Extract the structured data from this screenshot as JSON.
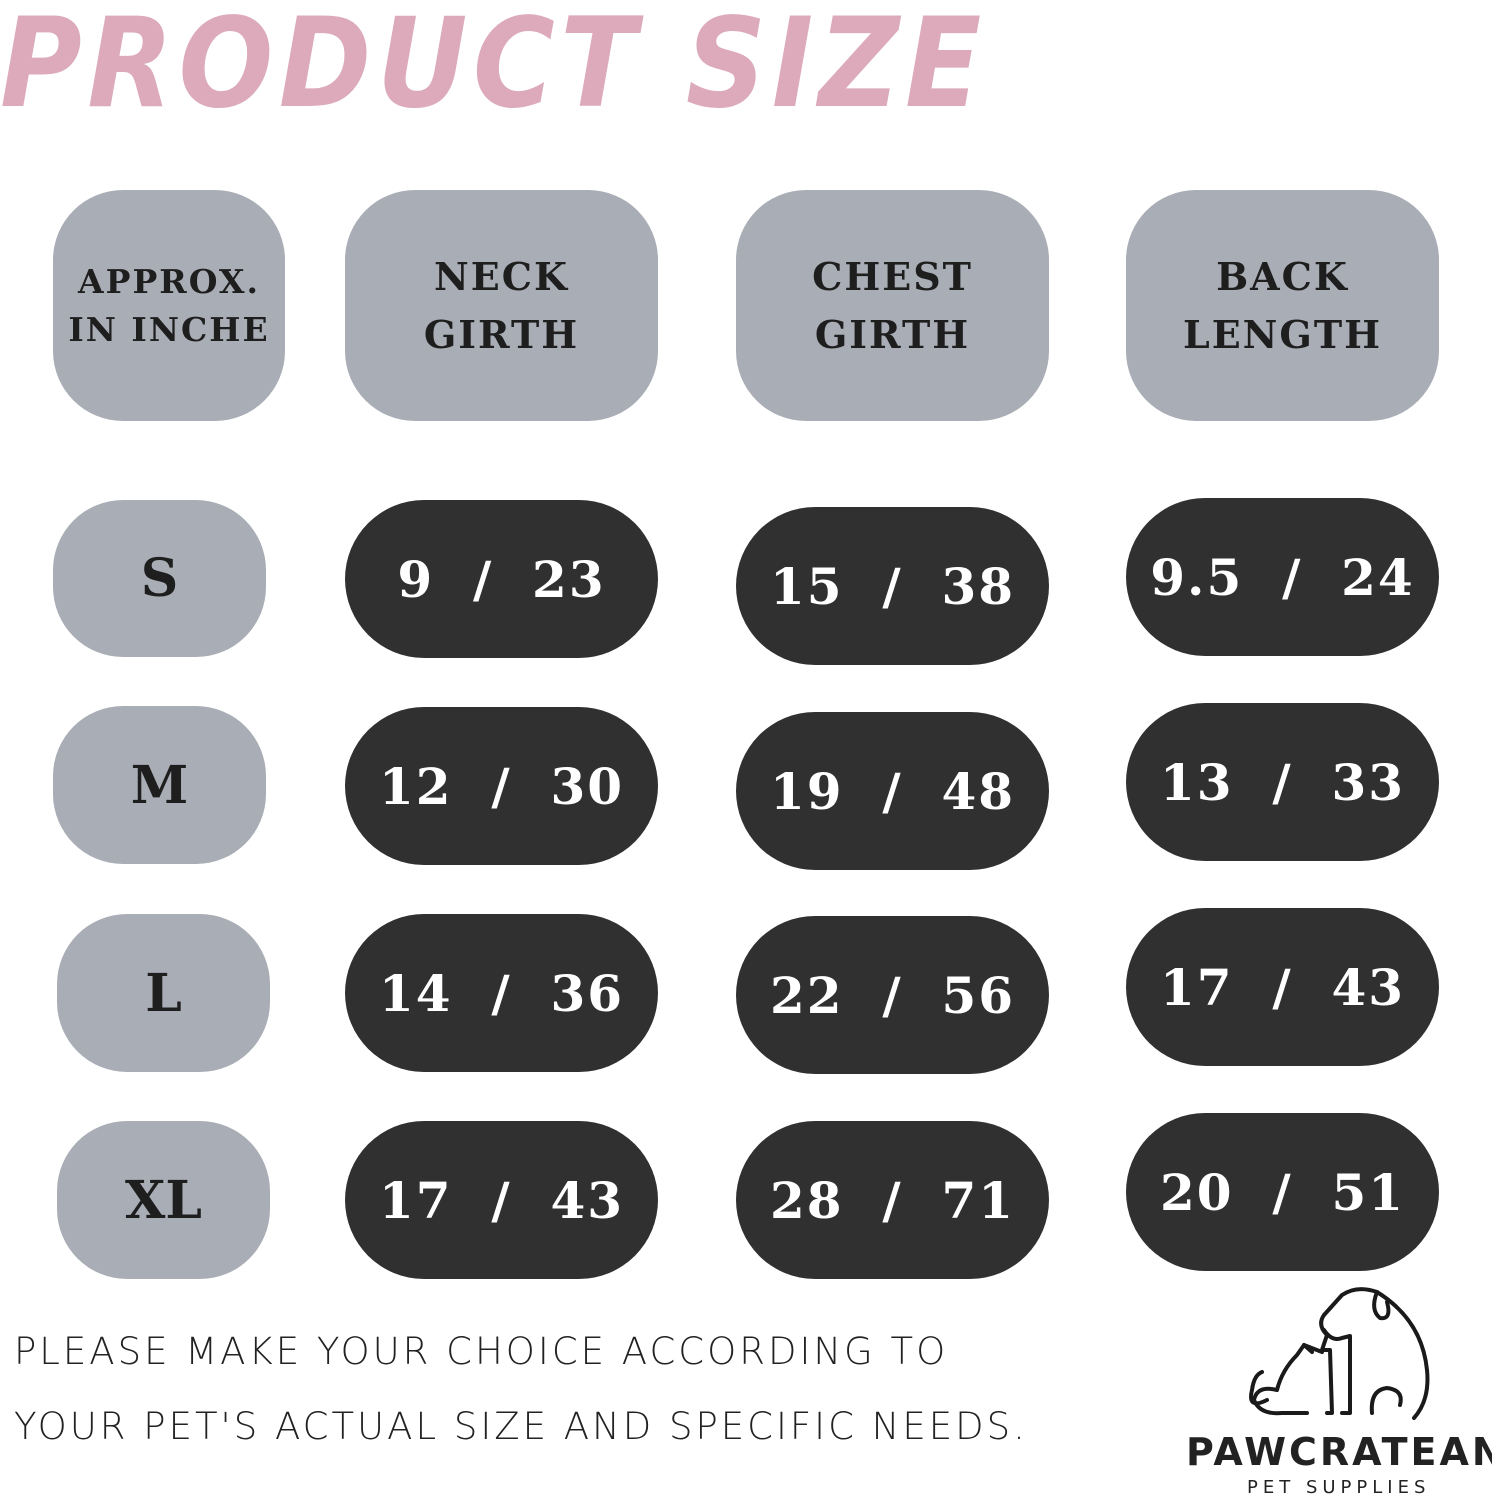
{
  "title": "PRODUCT SIZE",
  "colors": {
    "title": "#dcaabb",
    "header_bg": "#a9adb5",
    "value_bg": "#303030",
    "value_text": "#ffffff"
  },
  "headers": [
    "APPROX. IN INCHE",
    "NECK GIRTH",
    "CHEST GIRTH",
    "BACK LENGTH"
  ],
  "headers_lines": [
    [
      "APPROX.",
      "IN INCHE"
    ],
    [
      "NECK",
      "GIRTH"
    ],
    [
      "CHEST",
      "GIRTH"
    ],
    [
      "BACK",
      "LENGTH"
    ]
  ],
  "rows": [
    {
      "size": "S",
      "neck": "9  /  23",
      "chest": "15  /  38",
      "back": "9.5  /  24"
    },
    {
      "size": "M",
      "neck": "12  /  30",
      "chest": "19  /  48",
      "back": "13  /  33"
    },
    {
      "size": "L",
      "neck": "14  /  36",
      "chest": "22  /  56",
      "back": "17  /  43"
    },
    {
      "size": "XL",
      "neck": "17  /  43",
      "chest": "28  /  71",
      "back": "20  /  51"
    }
  ],
  "note_lines": [
    "PLEASE MAKE YOUR CHOICE ACCORDING TO",
    "YOUR PET'S ACTUAL SIZE AND SPECIFIC NEEDS."
  ],
  "logo": {
    "brand": "PAWCRATEAN",
    "tagline": "PET SUPPLIES",
    "icon": "dog-and-cat-outline-icon"
  }
}
